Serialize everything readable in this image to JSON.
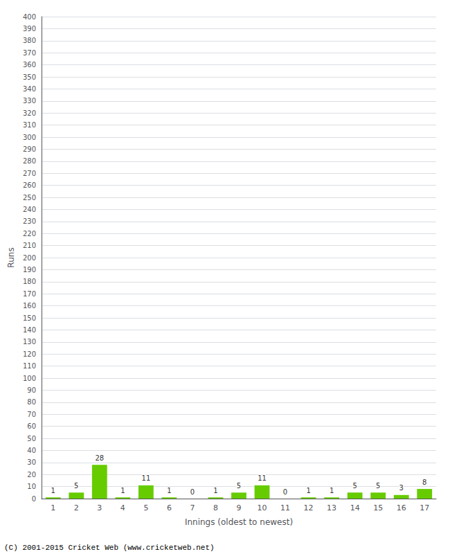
{
  "chart_data": {
    "type": "bar",
    "xlabel": "Innings (oldest to newest)",
    "ylabel": "Runs",
    "categories": [
      "1",
      "2",
      "3",
      "4",
      "5",
      "6",
      "7",
      "8",
      "9",
      "10",
      "11",
      "12",
      "13",
      "14",
      "15",
      "16",
      "17"
    ],
    "values": [
      1,
      5,
      28,
      1,
      11,
      1,
      0,
      1,
      5,
      11,
      0,
      1,
      1,
      5,
      5,
      3,
      8
    ],
    "color": "#66cc00",
    "ylim": [
      0,
      400
    ],
    "yticks": [
      0,
      10,
      20,
      30,
      40,
      50,
      60,
      70,
      80,
      90,
      100,
      110,
      120,
      130,
      140,
      150,
      160,
      170,
      180,
      190,
      200,
      210,
      220,
      230,
      240,
      250,
      260,
      270,
      280,
      290,
      300,
      310,
      320,
      330,
      340,
      350,
      360,
      370,
      380,
      390,
      400
    ],
    "grid": true,
    "data_labels": true,
    "annotations": [
      "(C) 2001-2015 Cricket Web (www.cricketweb.net)"
    ]
  }
}
